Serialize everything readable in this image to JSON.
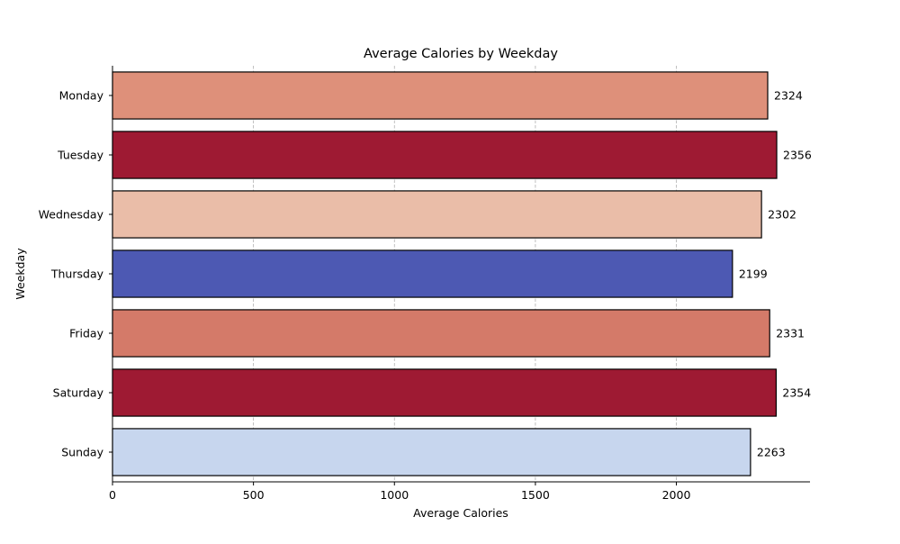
{
  "chart_data": {
    "type": "bar",
    "orientation": "horizontal",
    "title": "Average Calories by Weekday",
    "xlabel": "Average Calories",
    "ylabel": "Weekday",
    "categories": [
      "Monday",
      "Tuesday",
      "Wednesday",
      "Thursday",
      "Friday",
      "Saturday",
      "Sunday"
    ],
    "values": [
      2324,
      2356,
      2302,
      2199,
      2331,
      2354,
      2263
    ],
    "data_labels": [
      "2324",
      "2356",
      "2302",
      "2199",
      "2331",
      "2354",
      "2263"
    ],
    "colors": [
      "#de907a",
      "#9e1a33",
      "#eabda8",
      "#4d59b3",
      "#d47a69",
      "#9e1a33",
      "#c7d6ee"
    ],
    "bar_edge_color": "#000000",
    "xlim": [
      0,
      2474
    ],
    "xticks": [
      0,
      500,
      1000,
      1500,
      2000
    ],
    "xtick_labels": [
      "0",
      "500",
      "1000",
      "1500",
      "2000"
    ],
    "grid": "x-axis dashed",
    "legend": "none"
  }
}
